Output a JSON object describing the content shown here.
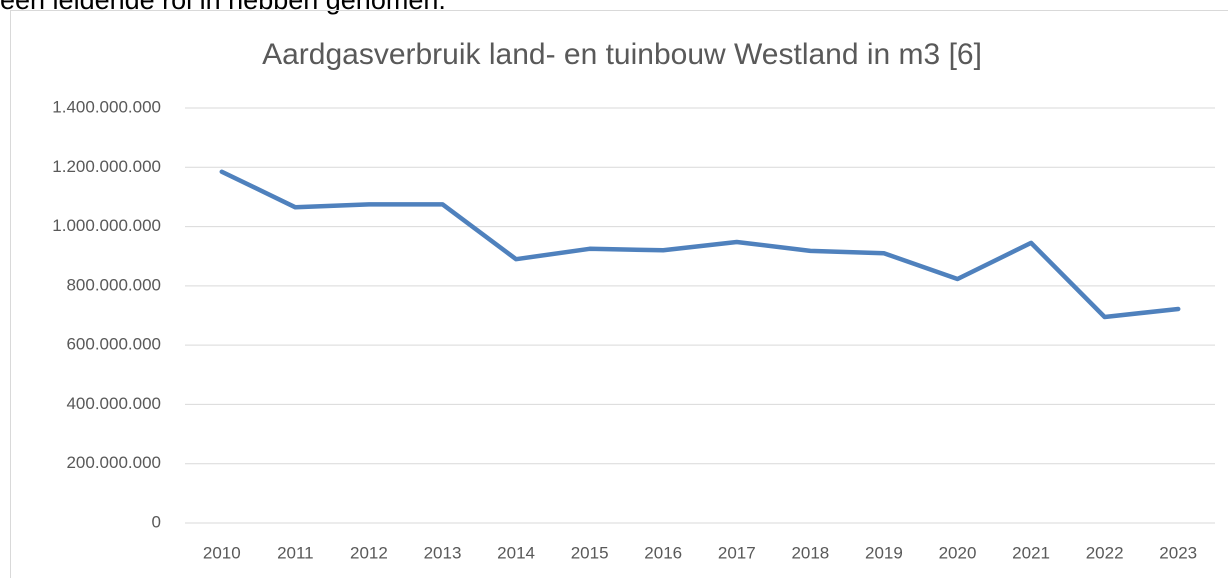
{
  "caption_fragment": "een leidende rol in hebben genomen.",
  "chart_data": {
    "type": "line",
    "title": "Aardgasverbruik land- en tuinbouw Westland in m3 [6]",
    "categories": [
      "2010",
      "2011",
      "2012",
      "2013",
      "2014",
      "2015",
      "2016",
      "2017",
      "2018",
      "2019",
      "2020",
      "2021",
      "2022",
      "2023"
    ],
    "series": [
      {
        "name": "Aardgasverbruik",
        "color": "#4f81bd",
        "values": [
          1185000000,
          1065000000,
          1075000000,
          1075000000,
          890000000,
          925000000,
          920000000,
          948000000,
          918000000,
          910000000,
          823000000,
          945000000,
          695000000,
          722000000
        ]
      }
    ],
    "ylim": [
      0,
      1400000000
    ],
    "yticks": [
      0,
      {
        "value": 200000000,
        "label": "200.000.000"
      },
      {
        "value": 400000000,
        "label": "400.000.000"
      },
      {
        "value": 600000000,
        "label": "600.000.000"
      },
      {
        "value": 800000000,
        "label": "800.000.000"
      },
      {
        "value": 1000000000,
        "label": "1.000.000.000"
      },
      {
        "value": 1200000000,
        "label": "1.200.000.000"
      },
      {
        "value": 1400000000,
        "label": "1.400.000.000"
      }
    ],
    "grid": true
  }
}
